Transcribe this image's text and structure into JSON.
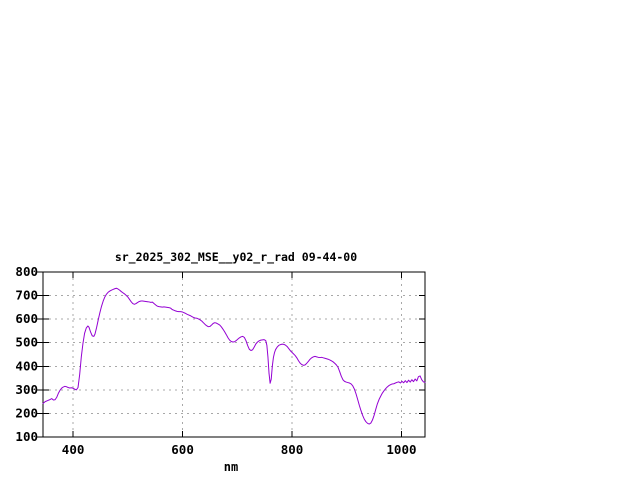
{
  "window": {
    "background": "#ffffff"
  },
  "chart_data": {
    "type": "line",
    "title": "sr_2025_302_MSE__y02_r_rad 09-44-00",
    "xlabel": "nm",
    "ylabel": "",
    "xlim": [
      345,
      1043
    ],
    "ylim": [
      100,
      800
    ],
    "x_ticks": [
      400,
      600,
      800,
      1000
    ],
    "y_ticks": [
      100,
      200,
      300,
      400,
      500,
      600,
      700,
      800
    ],
    "grid": true,
    "grid_style": "dashed",
    "legend_position": "none",
    "line_color": "#9400d3",
    "grid_color": "#a8a8a8",
    "axis_color": "#000000",
    "series": [
      {
        "points": [
          [
            345,
            242
          ],
          [
            349,
            250
          ],
          [
            353,
            254
          ],
          [
            357,
            258
          ],
          [
            361,
            263
          ],
          [
            364,
            257
          ],
          [
            367,
            258
          ],
          [
            370,
            268
          ],
          [
            373,
            285
          ],
          [
            376,
            298
          ],
          [
            379,
            307
          ],
          [
            382,
            312
          ],
          [
            385,
            315
          ],
          [
            388,
            313
          ],
          [
            391,
            310
          ],
          [
            394,
            308
          ],
          [
            397,
            309
          ],
          [
            400,
            307
          ],
          [
            403,
            303
          ],
          [
            406,
            300
          ],
          [
            409,
            310
          ],
          [
            412,
            365
          ],
          [
            415,
            440
          ],
          [
            418,
            497
          ],
          [
            421,
            540
          ],
          [
            424,
            562
          ],
          [
            427,
            571
          ],
          [
            429,
            566
          ],
          [
            432,
            545
          ],
          [
            435,
            529
          ],
          [
            438,
            527
          ],
          [
            440,
            537
          ],
          [
            443,
            565
          ],
          [
            446,
            598
          ],
          [
            449,
            628
          ],
          [
            452,
            655
          ],
          [
            455,
            677
          ],
          [
            458,
            694
          ],
          [
            461,
            706
          ],
          [
            464,
            714
          ],
          [
            467,
            719
          ],
          [
            470,
            723
          ],
          [
            473,
            726
          ],
          [
            476,
            729
          ],
          [
            479,
            731
          ],
          [
            482,
            728
          ],
          [
            485,
            723
          ],
          [
            488,
            717
          ],
          [
            491,
            712
          ],
          [
            494,
            707
          ],
          [
            497,
            701
          ],
          [
            500,
            694
          ],
          [
            503,
            684
          ],
          [
            506,
            674
          ],
          [
            509,
            666
          ],
          [
            512,
            663
          ],
          [
            515,
            666
          ],
          [
            518,
            671
          ],
          [
            521,
            675
          ],
          [
            524,
            677
          ],
          [
            527,
            677
          ],
          [
            530,
            676
          ],
          [
            533,
            675
          ],
          [
            536,
            674
          ],
          [
            539,
            673
          ],
          [
            542,
            671
          ],
          [
            545,
            672
          ],
          [
            548,
            666
          ],
          [
            551,
            660
          ],
          [
            554,
            655
          ],
          [
            557,
            653
          ],
          [
            560,
            652
          ],
          [
            563,
            651
          ],
          [
            566,
            652
          ],
          [
            569,
            651
          ],
          [
            572,
            650
          ],
          [
            575,
            649
          ],
          [
            578,
            647
          ],
          [
            581,
            641
          ],
          [
            584,
            638
          ],
          [
            587,
            635
          ],
          [
            590,
            633
          ],
          [
            593,
            632
          ],
          [
            596,
            632
          ],
          [
            599,
            631
          ],
          [
            602,
            628
          ],
          [
            605,
            625
          ],
          [
            608,
            621
          ],
          [
            611,
            618
          ],
          [
            614,
            615
          ],
          [
            617,
            611
          ],
          [
            620,
            607
          ],
          [
            623,
            605
          ],
          [
            626,
            604
          ],
          [
            629,
            601
          ],
          [
            632,
            597
          ],
          [
            635,
            592
          ],
          [
            638,
            585
          ],
          [
            641,
            578
          ],
          [
            644,
            572
          ],
          [
            647,
            568
          ],
          [
            650,
            569
          ],
          [
            653,
            575
          ],
          [
            656,
            582
          ],
          [
            659,
            585
          ],
          [
            662,
            583
          ],
          [
            665,
            579
          ],
          [
            668,
            575
          ],
          [
            671,
            567
          ],
          [
            674,
            557
          ],
          [
            677,
            546
          ],
          [
            680,
            534
          ],
          [
            683,
            521
          ],
          [
            686,
            511
          ],
          [
            689,
            505
          ],
          [
            692,
            503
          ],
          [
            695,
            504
          ],
          [
            698,
            509
          ],
          [
            701,
            515
          ],
          [
            704,
            521
          ],
          [
            707,
            525
          ],
          [
            710,
            527
          ],
          [
            713,
            522
          ],
          [
            716,
            508
          ],
          [
            719,
            488
          ],
          [
            722,
            472
          ],
          [
            725,
            467
          ],
          [
            728,
            470
          ],
          [
            731,
            482
          ],
          [
            734,
            495
          ],
          [
            737,
            503
          ],
          [
            740,
            508
          ],
          [
            743,
            511
          ],
          [
            746,
            512
          ],
          [
            749,
            513
          ],
          [
            752,
            509
          ],
          [
            754,
            490
          ],
          [
            756,
            440
          ],
          [
            758,
            370
          ],
          [
            760,
            328
          ],
          [
            762,
            345
          ],
          [
            764,
            400
          ],
          [
            766,
            437
          ],
          [
            768,
            458
          ],
          [
            770,
            471
          ],
          [
            773,
            482
          ],
          [
            776,
            489
          ],
          [
            779,
            492
          ],
          [
            782,
            494
          ],
          [
            785,
            493
          ],
          [
            788,
            490
          ],
          [
            791,
            484
          ],
          [
            794,
            475
          ],
          [
            797,
            466
          ],
          [
            800,
            459
          ],
          [
            803,
            452
          ],
          [
            806,
            445
          ],
          [
            809,
            435
          ],
          [
            812,
            423
          ],
          [
            815,
            413
          ],
          [
            818,
            407
          ],
          [
            821,
            404
          ],
          [
            824,
            406
          ],
          [
            827,
            413
          ],
          [
            830,
            421
          ],
          [
            833,
            430
          ],
          [
            836,
            436
          ],
          [
            839,
            440
          ],
          [
            842,
            442
          ],
          [
            845,
            440
          ],
          [
            848,
            438
          ],
          [
            851,
            437
          ],
          [
            854,
            438
          ],
          [
            857,
            436
          ],
          [
            860,
            434
          ],
          [
            863,
            432
          ],
          [
            866,
            430
          ],
          [
            869,
            427
          ],
          [
            872,
            423
          ],
          [
            875,
            419
          ],
          [
            878,
            413
          ],
          [
            881,
            406
          ],
          [
            884,
            396
          ],
          [
            887,
            378
          ],
          [
            890,
            358
          ],
          [
            893,
            343
          ],
          [
            896,
            336
          ],
          [
            899,
            333
          ],
          [
            902,
            331
          ],
          [
            905,
            329
          ],
          [
            908,
            325
          ],
          [
            911,
            317
          ],
          [
            914,
            303
          ],
          [
            917,
            283
          ],
          [
            920,
            259
          ],
          [
            923,
            234
          ],
          [
            926,
            212
          ],
          [
            929,
            192
          ],
          [
            932,
            176
          ],
          [
            935,
            165
          ],
          [
            938,
            158
          ],
          [
            941,
            155
          ],
          [
            944,
            159
          ],
          [
            947,
            172
          ],
          [
            950,
            192
          ],
          [
            953,
            217
          ],
          [
            956,
            241
          ],
          [
            959,
            259
          ],
          [
            962,
            273
          ],
          [
            965,
            286
          ],
          [
            968,
            296
          ],
          [
            971,
            305
          ],
          [
            974,
            312
          ],
          [
            977,
            318
          ],
          [
            980,
            322
          ],
          [
            983,
            325
          ],
          [
            986,
            326
          ],
          [
            989,
            329
          ],
          [
            992,
            332
          ],
          [
            995,
            334
          ],
          [
            998,
            329
          ],
          [
            1001,
            336
          ],
          [
            1004,
            330
          ],
          [
            1007,
            339
          ],
          [
            1010,
            331
          ],
          [
            1013,
            341
          ],
          [
            1016,
            333
          ],
          [
            1019,
            343
          ],
          [
            1022,
            335
          ],
          [
            1025,
            346
          ],
          [
            1028,
            338
          ],
          [
            1031,
            356
          ],
          [
            1034,
            359
          ],
          [
            1037,
            343
          ],
          [
            1040,
            334
          ],
          [
            1043,
            332
          ]
        ]
      }
    ]
  }
}
